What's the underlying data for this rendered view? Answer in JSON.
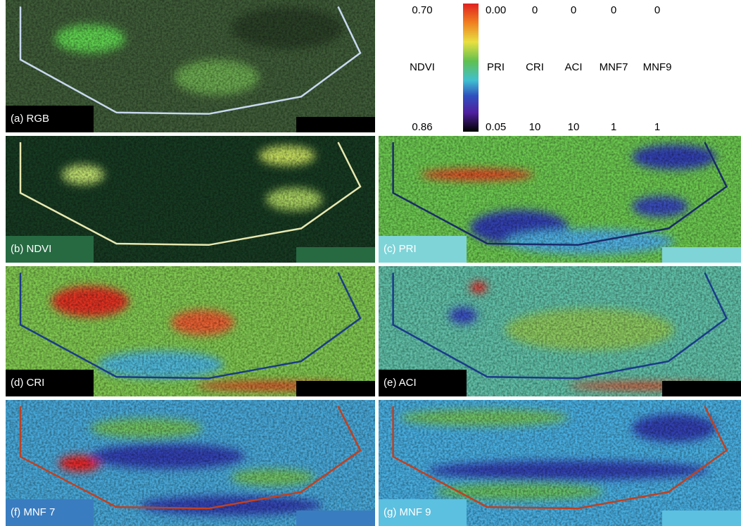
{
  "legend": {
    "columns": [
      {
        "top": "0.70",
        "name": "NDVI",
        "bottom": "0.86"
      },
      {
        "top": "0.00",
        "name": "PRI",
        "bottom": "0.05"
      },
      {
        "top": "0",
        "name": "CRI",
        "bottom": "10"
      },
      {
        "top": "0",
        "name": "ACI",
        "bottom": "10"
      },
      {
        "top": "0",
        "name": "MNF7",
        "bottom": "1"
      },
      {
        "top": "0",
        "name": "MNF9",
        "bottom": "1"
      }
    ]
  },
  "panels": [
    {
      "label": "(a) RGB"
    },
    {
      "label": "(b) NDVI"
    },
    {
      "label": "(c) PRI"
    },
    {
      "label": "(d) CRI"
    },
    {
      "label": "(e) ACI"
    },
    {
      "label": "(f) MNF 7"
    },
    {
      "label": "(g) MNF 9"
    }
  ]
}
